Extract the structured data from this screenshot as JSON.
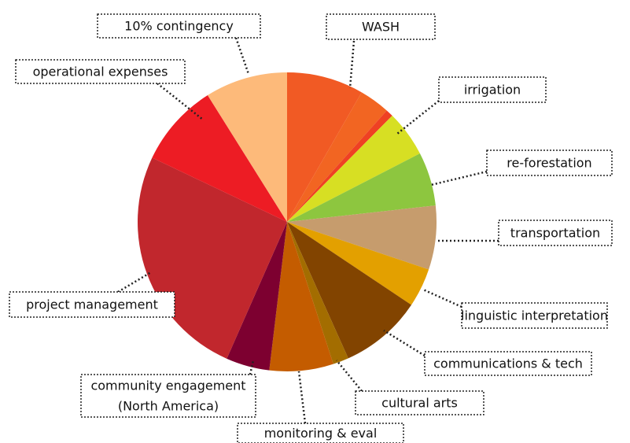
{
  "chart_data": {
    "type": "pie",
    "categories": [
      "WASH",
      null,
      null,
      "irrigation",
      "re-forestation",
      "transportation",
      "linguistic interpretation",
      "communications & tech",
      "cultural arts",
      "monitoring & eval",
      [
        "community engagement",
        "(North America)"
      ],
      "project management",
      "operational expenses",
      "10% contingency"
    ],
    "values": [
      8.3,
      3.3,
      0.8,
      5,
      5.8,
      6.9,
      4.2,
      8.9,
      1.7,
      6.9,
      4.7,
      25.4,
      9,
      8.9
    ],
    "colors": [
      "#f15a24",
      "#f26522",
      "#ef4123",
      "#d7df23",
      "#8dc63f",
      "#c69c6d",
      "#e3a000",
      "#824400",
      "#a36d00",
      "#c45c00",
      "#7d0030",
      "#c1272d",
      "#ed1c24",
      "#fdba7a"
    ]
  }
}
